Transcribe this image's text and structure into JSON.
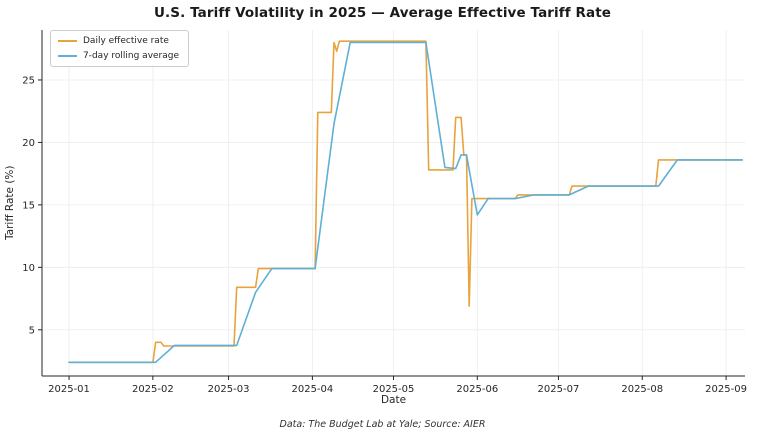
{
  "chart_data": {
    "type": "line",
    "title": "U.S. Tariff Volatility in 2025 — Average Effective Tariff Rate",
    "xlabel": "Date",
    "ylabel": "Tariff Rate (%)",
    "caption": "Data: The Budget Lab at Yale; Source: AIER",
    "grid": true,
    "legend_position": "upper-left",
    "xlim_days": [
      -10,
      250
    ],
    "ylim": [
      1.3,
      29.0
    ],
    "yticks": [
      5,
      10,
      15,
      20,
      25
    ],
    "xticks": [
      {
        "date": "2025-01-01",
        "label": "2025-01"
      },
      {
        "date": "2025-02-01",
        "label": "2025-02"
      },
      {
        "date": "2025-03-01",
        "label": "2025-03"
      },
      {
        "date": "2025-04-01",
        "label": "2025-04"
      },
      {
        "date": "2025-05-01",
        "label": "2025-05"
      },
      {
        "date": "2025-06-01",
        "label": "2025-06"
      },
      {
        "date": "2025-07-01",
        "label": "2025-07"
      },
      {
        "date": "2025-08-01",
        "label": "2025-08"
      },
      {
        "date": "2025-09-01",
        "label": "2025-09"
      }
    ],
    "series": [
      {
        "name": "Daily effective rate",
        "color": "#e8a33c",
        "points": [
          [
            "2025-01-01",
            2.4
          ],
          [
            "2025-02-01",
            2.4
          ],
          [
            "2025-02-02",
            4.0
          ],
          [
            "2025-02-04",
            4.0
          ],
          [
            "2025-02-05",
            3.7
          ],
          [
            "2025-03-03",
            3.7
          ],
          [
            "2025-03-04",
            8.4
          ],
          [
            "2025-03-11",
            8.4
          ],
          [
            "2025-03-12",
            9.9
          ],
          [
            "2025-04-02",
            9.9
          ],
          [
            "2025-04-03",
            22.4
          ],
          [
            "2025-04-08",
            22.4
          ],
          [
            "2025-04-09",
            28.0
          ],
          [
            "2025-04-10",
            27.3
          ],
          [
            "2025-04-11",
            28.1
          ],
          [
            "2025-05-13",
            28.1
          ],
          [
            "2025-05-14",
            17.8
          ],
          [
            "2025-05-23",
            17.8
          ],
          [
            "2025-05-24",
            22.0
          ],
          [
            "2025-05-26",
            22.0
          ],
          [
            "2025-05-27",
            19.0
          ],
          [
            "2025-05-28",
            19.0
          ],
          [
            "2025-05-29",
            6.9
          ],
          [
            "2025-05-30",
            15.5
          ],
          [
            "2025-06-15",
            15.5
          ],
          [
            "2025-06-16",
            15.8
          ],
          [
            "2025-07-05",
            15.8
          ],
          [
            "2025-07-06",
            16.5
          ],
          [
            "2025-08-06",
            16.5
          ],
          [
            "2025-08-07",
            18.6
          ],
          [
            "2025-09-07",
            18.6
          ]
        ]
      },
      {
        "name": "7-day rolling average",
        "color": "#5fb0d8",
        "points": [
          [
            "2025-01-01",
            2.4
          ],
          [
            "2025-02-02",
            2.4
          ],
          [
            "2025-02-09",
            3.75
          ],
          [
            "2025-03-04",
            3.75
          ],
          [
            "2025-03-11",
            8.0
          ],
          [
            "2025-03-17",
            9.9
          ],
          [
            "2025-04-02",
            9.9
          ],
          [
            "2025-04-09",
            21.5
          ],
          [
            "2025-04-15",
            28.0
          ],
          [
            "2025-05-13",
            28.0
          ],
          [
            "2025-05-20",
            18.0
          ],
          [
            "2025-05-24",
            17.9
          ],
          [
            "2025-05-26",
            19.0
          ],
          [
            "2025-05-28",
            19.0
          ],
          [
            "2025-06-01",
            14.2
          ],
          [
            "2025-06-05",
            15.5
          ],
          [
            "2025-06-15",
            15.5
          ],
          [
            "2025-06-22",
            15.8
          ],
          [
            "2025-07-05",
            15.8
          ],
          [
            "2025-07-12",
            16.5
          ],
          [
            "2025-08-07",
            16.5
          ],
          [
            "2025-08-14",
            18.6
          ],
          [
            "2025-09-07",
            18.6
          ]
        ]
      }
    ]
  }
}
